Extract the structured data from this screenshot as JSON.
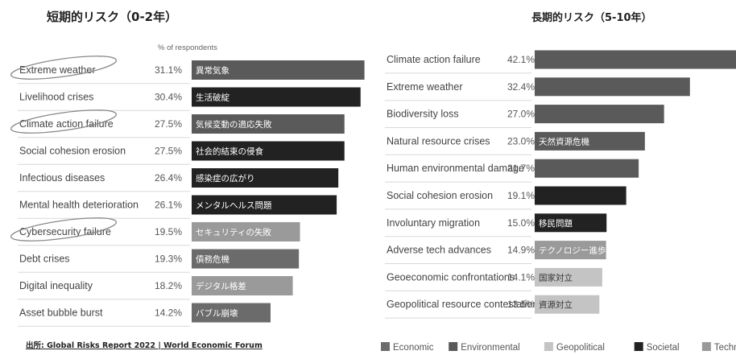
{
  "colors": {
    "Economic": "#6b6b6b",
    "Environmental": "#5a5a5a",
    "Geopolitical": "#c4c4c4",
    "Societal": "#222222",
    "Technological": "#9a9a9a"
  },
  "chart_data": [
    {
      "type": "bar",
      "orientation": "horizontal",
      "title": "短期的リスク（0-2年）",
      "subtitle": "% of respondents",
      "categories": [
        "Extreme weather",
        "Livelihood crises",
        "Climate action failure",
        "Social cohesion erosion",
        "Infectious diseases",
        "Mental health deterioration",
        "Cybersecurity failure",
        "Debt crises",
        "Digital inequality",
        "Asset bubble burst"
      ],
      "jp_labels": [
        "異常気象",
        "生活破綻",
        "気候変動の適応失敗",
        "社会的結束の侵食",
        "感染症の広がり",
        "メンタルヘルス問題",
        "セキュリティの失敗",
        "債務危機",
        "デジタル格差",
        "バブル崩壊"
      ],
      "values": [
        31.1,
        30.4,
        27.5,
        27.5,
        26.4,
        26.1,
        19.5,
        19.3,
        18.2,
        14.2
      ],
      "value_labels": [
        "31.1%",
        "30.4%",
        "27.5%",
        "27.5%",
        "26.4%",
        "26.1%",
        "19.5%",
        "19.3%",
        "18.2%",
        "14.2%"
      ],
      "category_type": [
        "Environmental",
        "Societal",
        "Environmental",
        "Societal",
        "Societal",
        "Societal",
        "Technological",
        "Economic",
        "Technological",
        "Economic"
      ],
      "circled": [
        "Extreme weather",
        "Climate action failure",
        "Cybersecurity failure"
      ]
    },
    {
      "type": "bar",
      "orientation": "horizontal",
      "title": "長期的リスク（5-10年）",
      "categories": [
        "Climate action failure",
        "Extreme weather",
        "Biodiversity loss",
        "Natural resource crises",
        "Human environmental damage",
        "Social cohesion erosion",
        "Involuntary migration",
        "Adverse tech advances",
        "Geoeconomic confrontations",
        "Geopolitical resource contestation"
      ],
      "jp_labels": [
        "",
        "",
        "",
        "天然資源危機",
        "",
        "",
        "移民問題",
        "テクノロジー進歩による悪影響",
        "国家対立",
        "資源対立"
      ],
      "values": [
        42.1,
        32.4,
        27.0,
        23.0,
        21.7,
        19.1,
        15.0,
        14.9,
        14.1,
        13.5
      ],
      "value_labels": [
        "42.1%",
        "32.4%",
        "27.0%",
        "23.0%",
        "21.7%",
        "19.1%",
        "15.0%",
        "14.9%",
        "14.1%",
        "13.5%"
      ],
      "category_type": [
        "Environmental",
        "Environmental",
        "Environmental",
        "Environmental",
        "Environmental",
        "Societal",
        "Societal",
        "Technological",
        "Geopolitical",
        "Geopolitical"
      ],
      "legend": [
        "Economic",
        "Environmental",
        "Geopolitical",
        "Societal",
        "Technological"
      ],
      "legend_position": "bottom"
    }
  ],
  "source": "出所: Global Risks Report 2022 | World Economic Forum"
}
